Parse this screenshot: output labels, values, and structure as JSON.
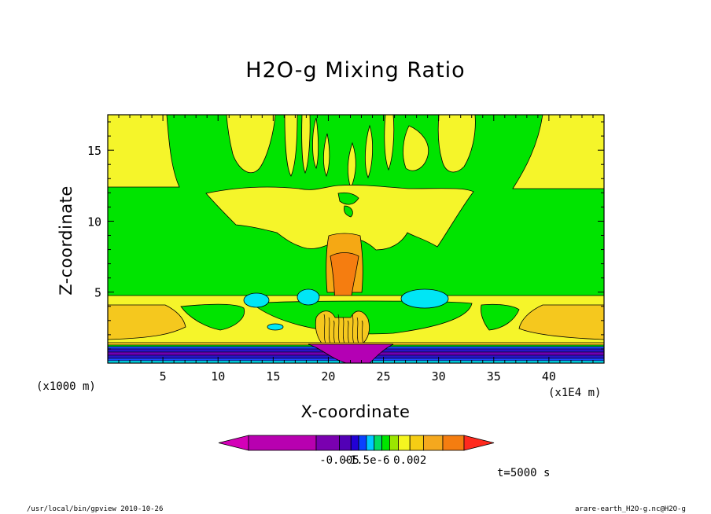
{
  "chart_data": {
    "type": "heatmap",
    "title": "H2O-g Mixing Ratio",
    "xlabel": "X-coordinate",
    "ylabel": "Z-coordinate",
    "x_unit_note": "(x1000 m)",
    "x_scale_note": "(x1E4 m)",
    "xticks": [
      5,
      10,
      15,
      20,
      25,
      30,
      35,
      40
    ],
    "yticks": [
      5,
      10,
      15
    ],
    "xlim": [
      0,
      45
    ],
    "ylim": [
      0,
      17.5
    ],
    "colorbar": {
      "labels": [
        "-0.005",
        "-1.5e-6",
        "0.002"
      ],
      "colors": [
        "#d400b8",
        "#b800b0",
        "#7a00b0",
        "#5200b6",
        "#2200d6",
        "#0a42ff",
        "#00c8ff",
        "#00dc64",
        "#00e600",
        "#9be600",
        "#f5f520",
        "#f5cd14",
        "#f5a81e",
        "#f57d10",
        "#ff2a1e"
      ]
    },
    "levels": {
      "yellow": "#f5f52a",
      "green": "#00e400",
      "gold": "#f5c81e",
      "orange": "#f5a814",
      "deep_orange": "#f57d10",
      "cyan": "#00e6f5",
      "blue": "#1e46ff",
      "indigo": "#2814c8",
      "violet": "#6e00b4",
      "magenta": "#b400b4"
    }
  },
  "footer": {
    "time": "t=5000 s",
    "program_path": "/usr/local/bin/gpview   2010-10-26",
    "file_ref": "arare-earth_H2O-g.nc@H2O-g"
  }
}
